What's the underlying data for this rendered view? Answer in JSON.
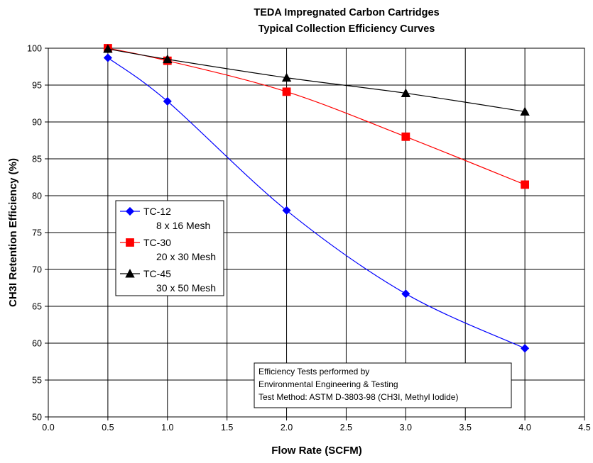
{
  "chart_data": {
    "type": "line",
    "title": "TEDA Impregnated Carbon Cartridges",
    "subtitle": "Typical Collection Efficiency Curves",
    "xlabel": "Flow Rate (SCFM)",
    "ylabel": "CH3I Retention Efficiency (%)",
    "xlim": [
      0.0,
      4.5
    ],
    "ylim": [
      50,
      100
    ],
    "x_ticks": [
      "0.0",
      "0.5",
      "1.0",
      "1.5",
      "2.0",
      "2.5",
      "3.0",
      "3.5",
      "4.0",
      "4.5"
    ],
    "y_ticks": [
      "50",
      "55",
      "60",
      "65",
      "70",
      "75",
      "80",
      "85",
      "90",
      "95",
      "100"
    ],
    "grid": true,
    "legend_position": "middle-left",
    "series": [
      {
        "name": "TC-12",
        "label2": "8 x 16 Mesh",
        "color": "#0000FF",
        "marker": "diamond",
        "x": [
          0.5,
          1.0,
          2.0,
          3.0,
          4.0
        ],
        "y": [
          98.7,
          92.8,
          78.0,
          66.7,
          59.3
        ]
      },
      {
        "name": "TC-30",
        "label2": "20 x 30 Mesh",
        "color": "#FF0000",
        "marker": "square",
        "x": [
          0.5,
          1.0,
          2.0,
          3.0,
          4.0
        ],
        "y": [
          100.0,
          98.3,
          94.1,
          88.0,
          81.5
        ]
      },
      {
        "name": "TC-45",
        "label2": "30 x 50 Mesh",
        "color": "#000000",
        "marker": "triangle",
        "x": [
          0.5,
          1.0,
          2.0,
          3.0,
          4.0
        ],
        "y": [
          99.9,
          98.5,
          96.0,
          93.9,
          91.4
        ]
      }
    ],
    "annotation": [
      "Efficiency Tests performed by",
      "Environmental Engineering & Testing",
      "Test Method: ASTM D-3803-98 (CH3I, Methyl Iodide)"
    ]
  }
}
